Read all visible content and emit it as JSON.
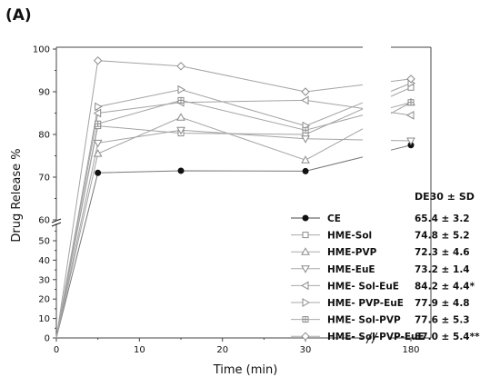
{
  "panel_label": "(A)",
  "chart_data": {
    "type": "line",
    "xlabel": "Time (min)",
    "ylabel": "Drug Release %",
    "x_ticks": [
      "0",
      "10",
      "20",
      "30",
      "180"
    ],
    "y_ticks_lower": [
      "0",
      "10",
      "20",
      "30",
      "40",
      "50",
      "60"
    ],
    "y_ticks_upper": [
      "70",
      "80",
      "90",
      "100"
    ],
    "x_segments": [
      [
        0,
        37
      ],
      [
        170,
        185
      ]
    ],
    "y_segments": [
      [
        0,
        55
      ],
      [
        60,
        100
      ]
    ],
    "grid": false,
    "legend_position": "bottom-right",
    "legend_header": "DE30 ± SD",
    "x": [
      0,
      5,
      15,
      30,
      180
    ],
    "series": [
      {
        "name": "CE",
        "marker": "circle-filled",
        "values": [
          0,
          71.0,
          71.5,
          71.4,
          77.5
        ],
        "de30": "65.4 ± 3.2"
      },
      {
        "name": "HME-Sol",
        "marker": "square",
        "values": [
          0,
          82.0,
          80.3,
          80.0,
          91.0
        ],
        "de30": "74.8 ± 5.2"
      },
      {
        "name": "HME-PVP",
        "marker": "triangle-up",
        "values": [
          0,
          75.5,
          84.0,
          74.0,
          87.5
        ],
        "de30": "72.3 ± 4.6"
      },
      {
        "name": "HME-EuE",
        "marker": "triangle-down",
        "values": [
          0,
          78.0,
          81.0,
          79.0,
          78.5
        ],
        "de30": "73.2 ± 1.4"
      },
      {
        "name": "HME- Sol-EuE",
        "marker": "triangle-left",
        "values": [
          0,
          85.0,
          87.5,
          88.0,
          84.5
        ],
        "de30": "84.2 ± 4.4*"
      },
      {
        "name": "HME- PVP-EuE",
        "marker": "triangle-right",
        "values": [
          0,
          86.5,
          90.5,
          82.0,
          92.0
        ],
        "de30": "77.9 ± 4.8"
      },
      {
        "name": "HME- Sol-PVP",
        "marker": "square-cross",
        "values": [
          0,
          82.5,
          88.0,
          81.0,
          87.5
        ],
        "de30": "77.6 ± 5.3"
      },
      {
        "name": "HME- Sol-PVP-EuE",
        "marker": "diamond",
        "values": [
          0,
          97.3,
          96.0,
          90.0,
          93.0
        ],
        "de30": "87.0 ± 5.4**"
      }
    ]
  }
}
